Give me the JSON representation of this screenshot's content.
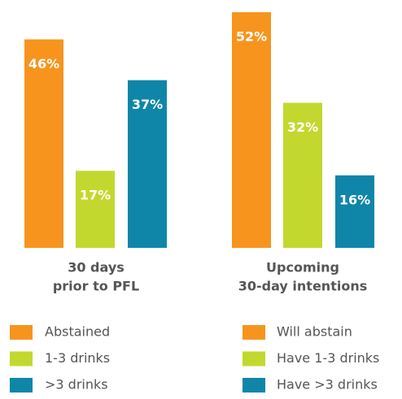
{
  "chart_data": [
    {
      "type": "bar",
      "title": [
        "30 days",
        "prior to PFL"
      ],
      "categories": [
        "Abstained",
        "1-3 drinks",
        ">3 drinks"
      ],
      "values": [
        46,
        17,
        37
      ],
      "value_labels": [
        "46%",
        "17%",
        "37%"
      ],
      "colors": [
        "#f7941d",
        "#c2d82e",
        "#0f86a8"
      ]
    },
    {
      "type": "bar",
      "title": [
        "Upcoming",
        "30-day intentions"
      ],
      "categories": [
        "Will abstain",
        "Have 1-3 drinks",
        "Have >3 drinks"
      ],
      "values": [
        52,
        32,
        16
      ],
      "value_labels": [
        "52%",
        "32%",
        "16%"
      ],
      "colors": [
        "#f7941d",
        "#c2d82e",
        "#0f86a8"
      ]
    }
  ]
}
